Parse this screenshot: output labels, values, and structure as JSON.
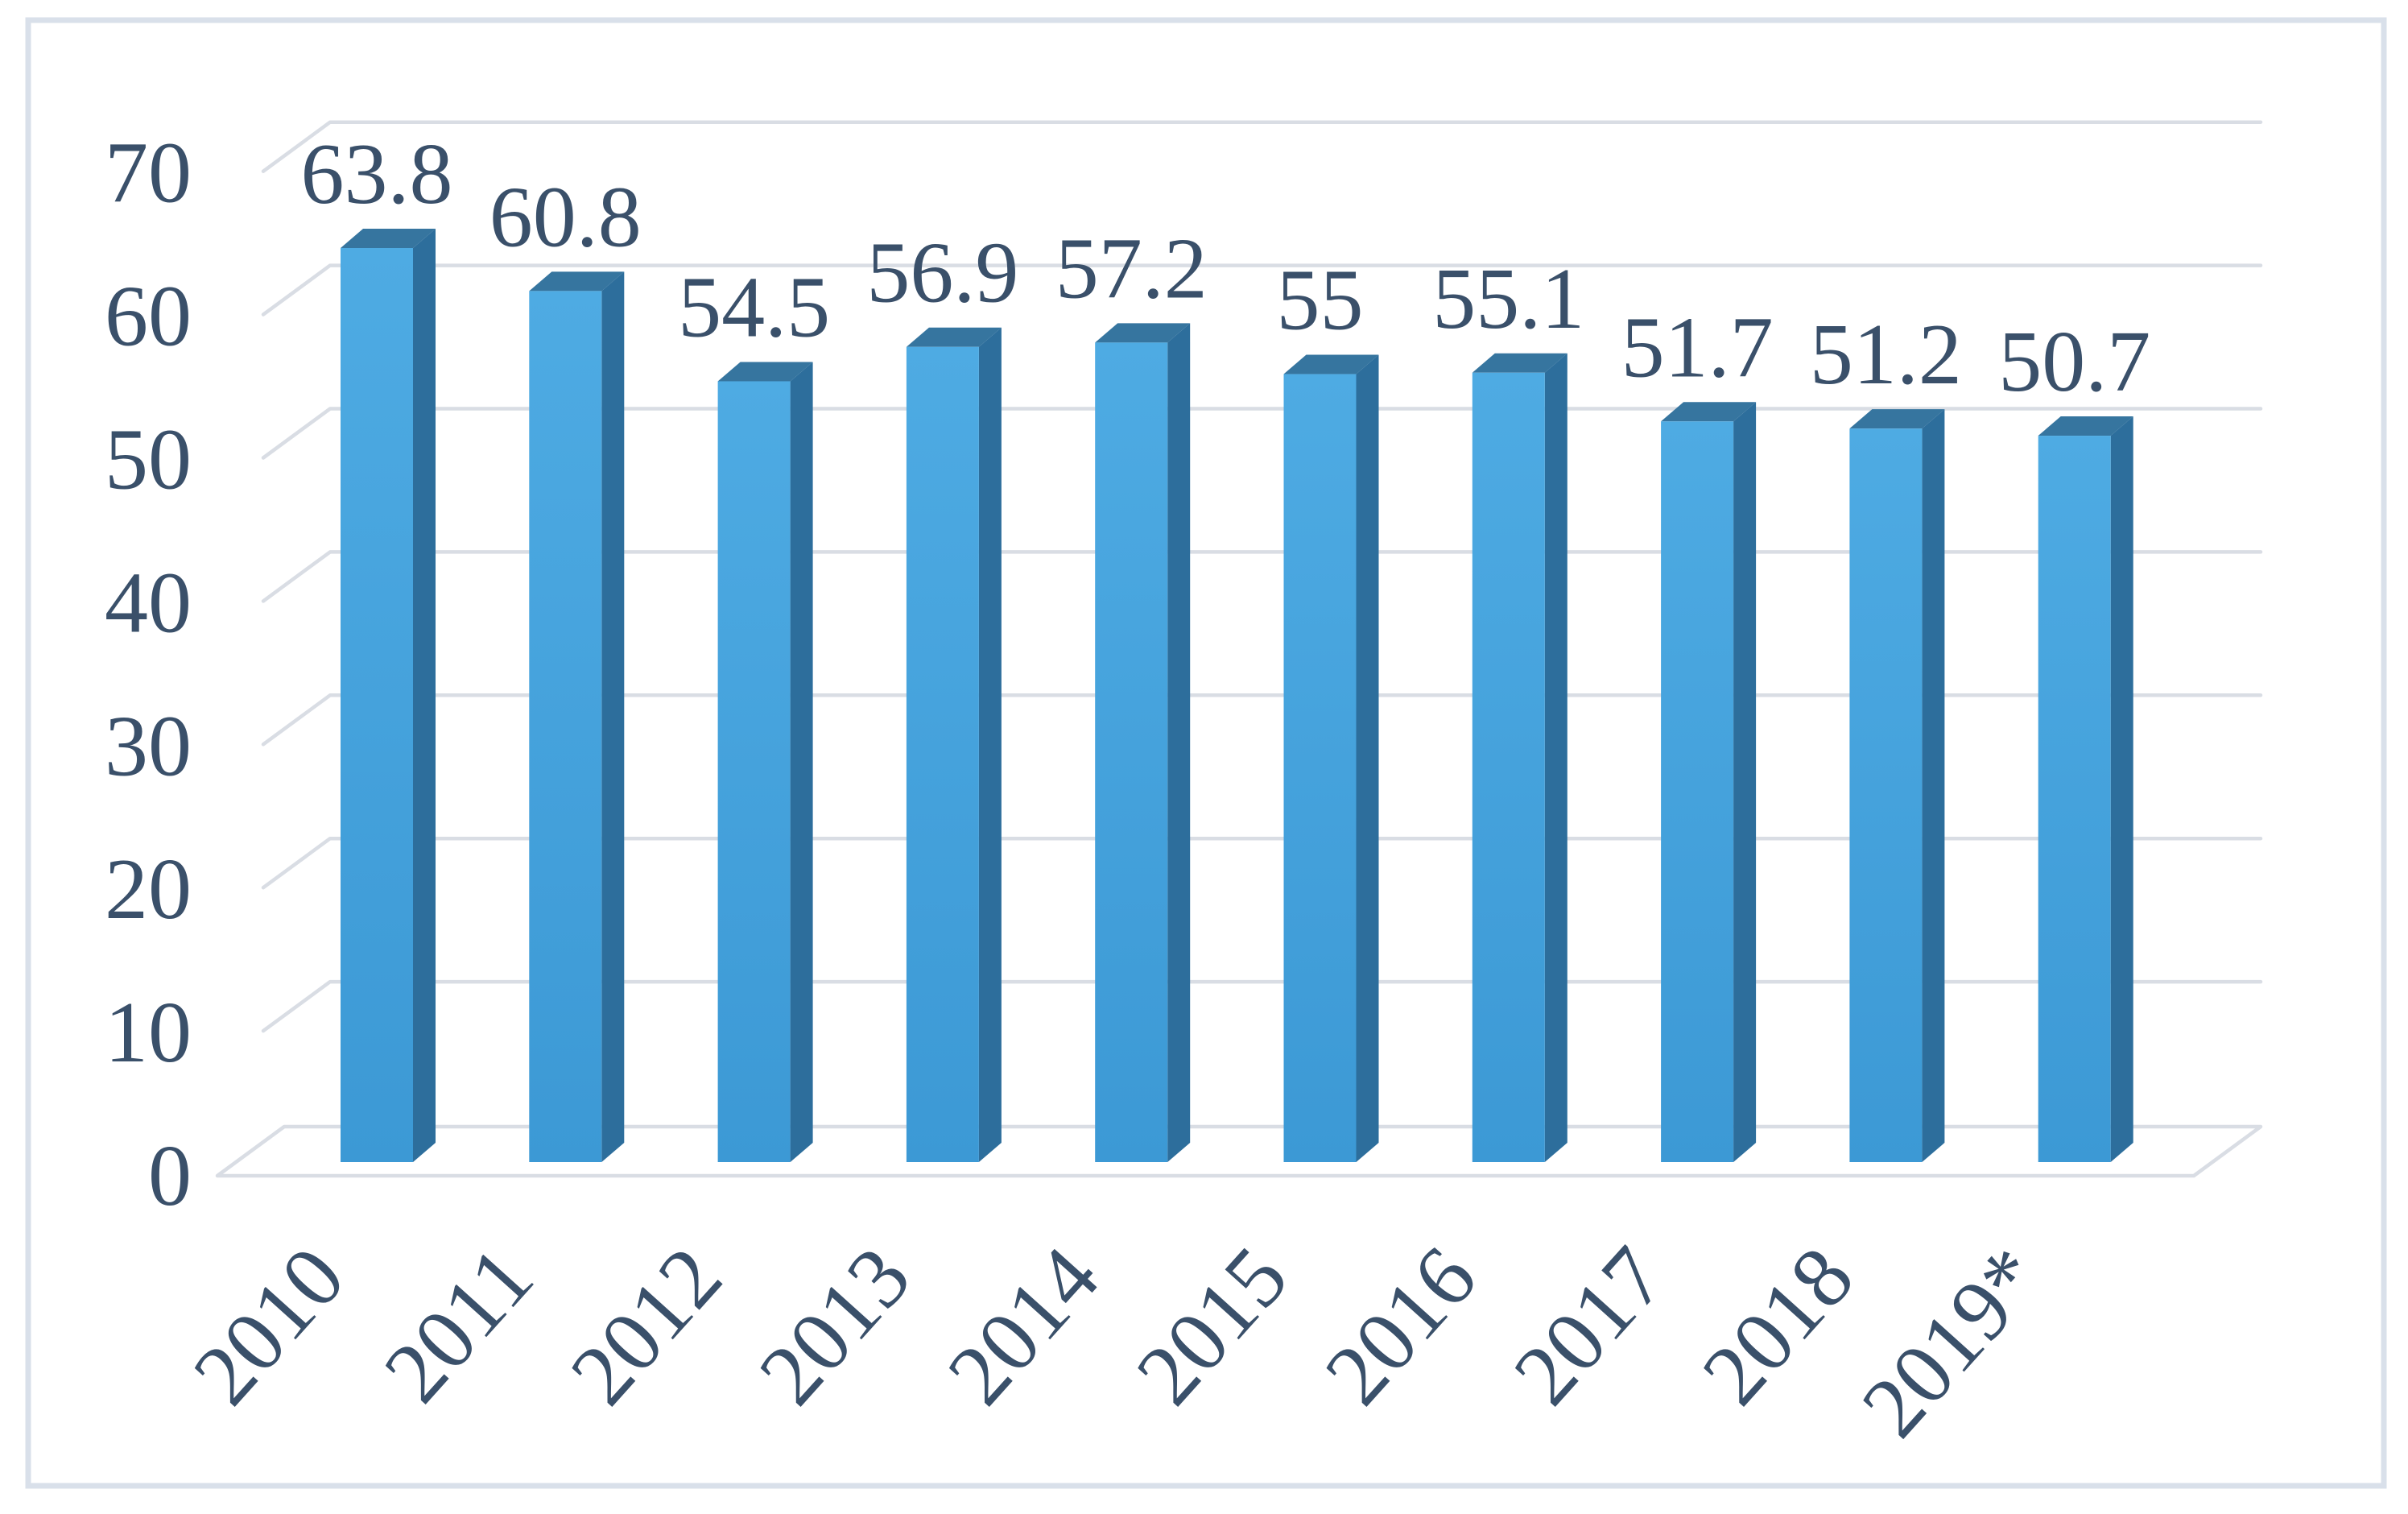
{
  "chart_data": {
    "type": "bar",
    "style": "3d-column-perspective",
    "title": "",
    "xlabel": "",
    "ylabel": "",
    "categories": [
      "2010",
      "2011",
      "2012",
      "2013",
      "2014",
      "2015",
      "2016",
      "2017",
      "2018",
      "2019*"
    ],
    "values": [
      63.8,
      60.8,
      54.5,
      56.9,
      57.2,
      55,
      55.1,
      51.7,
      51.2,
      50.7
    ],
    "data_labels": [
      "63.8",
      "60.8",
      "54.5",
      "56.9",
      "57.2",
      "55",
      "55.1",
      "51.7",
      "51.2",
      "50.7"
    ],
    "series_name": "",
    "ylim": [
      0,
      70
    ],
    "yticks": [
      0,
      10,
      20,
      30,
      40,
      50,
      60,
      70
    ],
    "ytick_labels": [
      "0",
      "10",
      "20",
      "30",
      "40",
      "50",
      "60",
      "70"
    ],
    "grid": true,
    "legend": false,
    "x_label_rotation_deg": -48
  },
  "colors": {
    "background": "#FFFFFF",
    "frame_border": "#D9E0EA",
    "gridline": "#D9DDE4",
    "text": "#3A506A",
    "bar_front": "#3C99D5",
    "bar_front_light": "#4EABE3",
    "bar_side": "#2D6E9C",
    "bar_top": "#36759F"
  }
}
